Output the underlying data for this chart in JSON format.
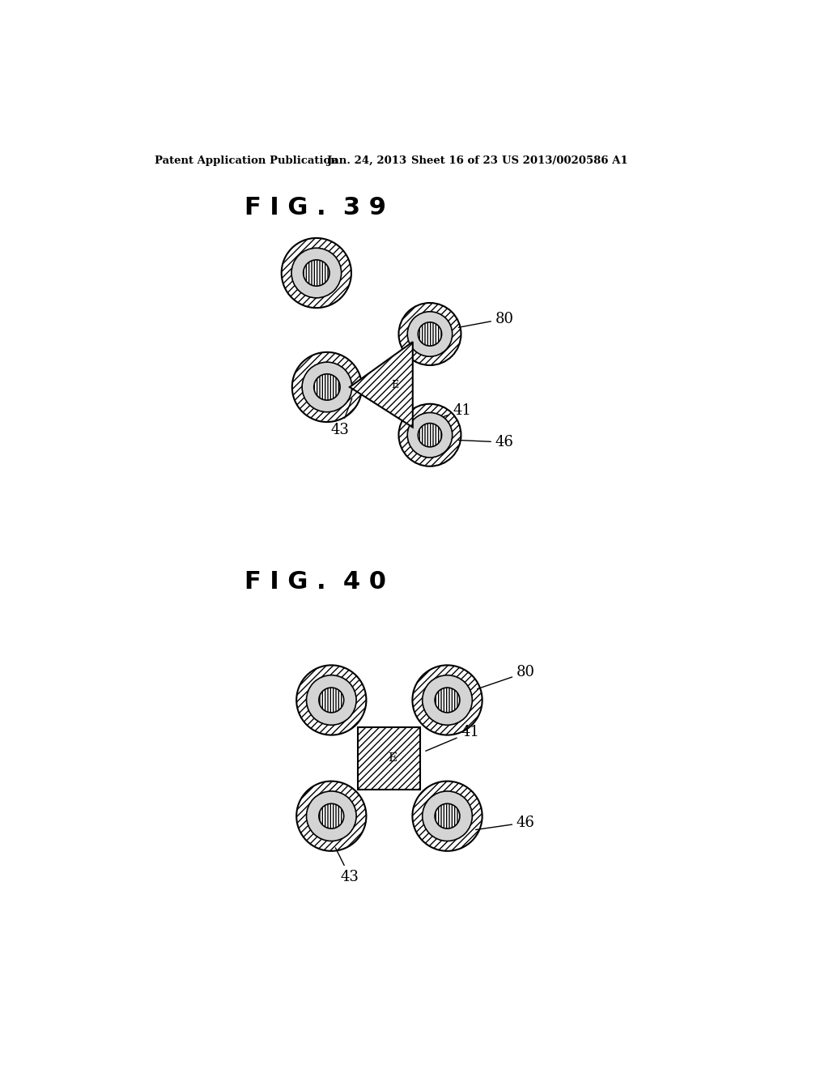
{
  "bg_color": "#ffffff",
  "header_text": "Patent Application Publication",
  "header_date": "Jan. 24, 2013",
  "header_sheet": "Sheet 16 of 23",
  "header_patent": "US 2013/0020586 A1",
  "fig39_label": "F I G .  3 9",
  "fig40_label": "F I G .  4 0",
  "label_80": "80",
  "label_41": "41",
  "label_43": "43",
  "label_46": "46",
  "label_E": "E"
}
